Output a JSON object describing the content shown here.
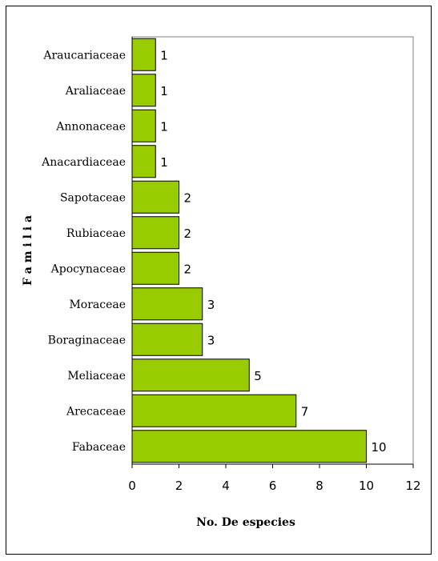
{
  "chart_data": {
    "type": "bar",
    "orientation": "horizontal",
    "categories": [
      "Araucariaceae",
      "Araliaceae",
      "Annonaceae",
      "Anacardiaceae",
      "Sapotaceae",
      "Rubiaceae",
      "Apocynaceae",
      "Moraceae",
      "Boraginaceae",
      "Meliaceae",
      "Arecaceae",
      "Fabaceae"
    ],
    "values": [
      1,
      1,
      1,
      1,
      2,
      2,
      2,
      3,
      3,
      5,
      7,
      10
    ],
    "xlabel": "No. De especies",
    "ylabel": "F a m i l i a",
    "xlim": [
      0,
      12
    ],
    "xticks": [
      0,
      2,
      4,
      6,
      8,
      10,
      12
    ],
    "bar_color": "#99cc00",
    "bar_edge_color": "#000000",
    "data_labels": true,
    "grid": false,
    "legend": "none"
  }
}
